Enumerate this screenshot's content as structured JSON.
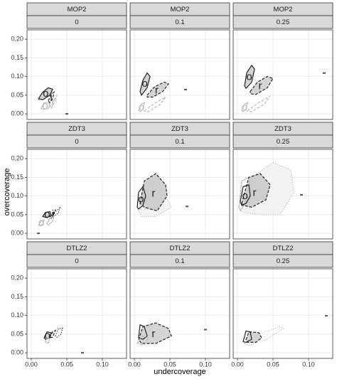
{
  "chart_data": {
    "type": "contour",
    "xlabel": "undercoverage",
    "ylabel": "overcoverage",
    "xlim": [
      -0.006,
      0.134
    ],
    "ylim": [
      -0.015,
      0.225
    ],
    "xticks": [
      {
        "value": 0,
        "label": "0.00"
      },
      {
        "value": 0.05,
        "label": "0.05"
      },
      {
        "value": 0.1,
        "label": "0.10"
      }
    ],
    "yticks": [
      {
        "value": 0,
        "label": "0.00"
      },
      {
        "value": 0.05,
        "label": "0.05"
      },
      {
        "value": 0.1,
        "label": "0.10"
      },
      {
        "value": 0.15,
        "label": "0.15"
      },
      {
        "value": 0.2,
        "label": "0.20"
      }
    ],
    "grid": true,
    "panels": [
      {
        "problem": "MOP2",
        "noise": "0",
        "series": [
          {
            "label": "o",
            "style": "solid",
            "color": "#222222",
            "fill": "#cccccc",
            "x": [
              0.01,
              0.016,
              0.024,
              0.03,
              0.026,
              0.016
            ],
            "y": [
              0.04,
              0.058,
              0.07,
              0.066,
              0.05,
              0.038
            ]
          },
          {
            "label": "i",
            "style": "dashed",
            "color": "#222222",
            "fill": null,
            "x": [
              0.024,
              0.028,
              0.032,
              0.03,
              0.026
            ],
            "y": [
              0.035,
              0.052,
              0.058,
              0.04,
              0.03
            ]
          },
          {
            "label": "r",
            "style": "dashed",
            "color": "#bbbbbb",
            "fill": null,
            "x": [
              0.026,
              0.03,
              0.036,
              0.034,
              0.028
            ],
            "y": [
              0.018,
              0.03,
              0.05,
              0.035,
              0.015
            ]
          },
          {
            "label": "o",
            "style": "solid",
            "color": "#bbbbbb",
            "fill": null,
            "x": [
              0.014,
              0.018,
              0.026,
              0.024,
              0.016
            ],
            "y": [
              0.015,
              0.03,
              0.028,
              0.014,
              0.012
            ]
          },
          {
            "marker": true,
            "color": "#555555",
            "x": [
              0.05
            ],
            "y": [
              0.0
            ]
          }
        ]
      },
      {
        "problem": "MOP2",
        "noise": "0.1",
        "series": [
          {
            "label": "o",
            "style": "solid",
            "color": "#222222",
            "fill": "#cccccc",
            "x": [
              0.008,
              0.012,
              0.018,
              0.022,
              0.018,
              0.01
            ],
            "y": [
              0.06,
              0.09,
              0.11,
              0.1,
              0.07,
              0.05
            ]
          },
          {
            "label": "r",
            "style": "dashed",
            "color": "#222222",
            "fill": "#cccccc",
            "x": [
              0.018,
              0.028,
              0.042,
              0.048,
              0.04,
              0.026,
              0.018
            ],
            "y": [
              0.05,
              0.072,
              0.085,
              0.08,
              0.06,
              0.045,
              0.045
            ]
          },
          {
            "label": "o",
            "style": "solid",
            "color": "#bbbbbb",
            "fill": null,
            "x": [
              0.006,
              0.01,
              0.014,
              0.012,
              0.008
            ],
            "y": [
              0.01,
              0.026,
              0.03,
              0.012,
              0.006
            ]
          },
          {
            "style": "dashed",
            "color": "#bbbbbb",
            "fill": null,
            "x": [
              0.014,
              0.03,
              0.044,
              0.036,
              0.02
            ],
            "y": [
              0.008,
              0.03,
              0.045,
              0.025,
              0.006
            ]
          },
          {
            "marker": true,
            "color": "#555555",
            "x": [
              0.072
            ],
            "y": [
              0.065
            ]
          }
        ]
      },
      {
        "problem": "MOP2",
        "noise": "0.25",
        "series": [
          {
            "label": "o",
            "style": "solid",
            "color": "#222222",
            "fill": "#cccccc",
            "x": [
              0.01,
              0.013,
              0.02,
              0.024,
              0.02,
              0.012
            ],
            "y": [
              0.075,
              0.11,
              0.13,
              0.12,
              0.085,
              0.068
            ]
          },
          {
            "label": "r",
            "style": "dashed",
            "color": "#222222",
            "fill": "#cccccc",
            "x": [
              0.018,
              0.028,
              0.042,
              0.05,
              0.042,
              0.026,
              0.018
            ],
            "y": [
              0.06,
              0.085,
              0.1,
              0.095,
              0.07,
              0.052,
              0.054
            ]
          },
          {
            "label": "o",
            "style": "solid",
            "color": "#bbbbbb",
            "fill": null,
            "x": [
              0.006,
              0.01,
              0.014,
              0.012,
              0.008
            ],
            "y": [
              0.01,
              0.026,
              0.03,
              0.012,
              0.006
            ]
          },
          {
            "style": "dashed",
            "color": "#bbbbbb",
            "fill": null,
            "x": [
              0.014,
              0.03,
              0.046,
              0.038,
              0.02
            ],
            "y": [
              0.008,
              0.03,
              0.048,
              0.026,
              0.006
            ]
          },
          {
            "marker": true,
            "color": "#555555",
            "x": [
              0.122
            ],
            "y": [
              0.109
            ]
          }
        ]
      },
      {
        "problem": "ZDT3",
        "noise": "0",
        "series": [
          {
            "label": "o",
            "style": "solid",
            "color": "#222222",
            "fill": "#cccccc",
            "x": [
              0.016,
              0.02,
              0.026,
              0.028,
              0.022
            ],
            "y": [
              0.045,
              0.056,
              0.058,
              0.048,
              0.042
            ]
          },
          {
            "label": "i",
            "style": "dashed",
            "color": "#222222",
            "fill": null,
            "x": [
              0.026,
              0.03,
              0.034,
              0.032,
              0.028
            ],
            "y": [
              0.044,
              0.05,
              0.064,
              0.052,
              0.04
            ]
          },
          {
            "style": "dotted",
            "color": "#222222",
            "fill": null,
            "x": [
              0.03,
              0.034,
              0.04,
              0.038,
              0.032
            ],
            "y": [
              0.05,
              0.058,
              0.068,
              0.054,
              0.046
            ]
          },
          {
            "label": "o",
            "style": "solid",
            "color": "#bbbbbb",
            "fill": null,
            "x": [
              0.01,
              0.014,
              0.018,
              0.016,
              0.012
            ],
            "y": [
              0.022,
              0.034,
              0.036,
              0.024,
              0.02
            ]
          },
          {
            "style": "solid",
            "color": "#bbbbbb",
            "fill": null,
            "x": [
              0.022,
              0.026,
              0.032,
              0.03,
              0.024
            ],
            "y": [
              0.026,
              0.04,
              0.046,
              0.032,
              0.022
            ]
          },
          {
            "marker": true,
            "color": "#555555",
            "x": [
              0.01
            ],
            "y": [
              0.0
            ]
          }
        ]
      },
      {
        "problem": "ZDT3",
        "noise": "0.1",
        "series": [
          {
            "style": "dotted",
            "color": "#bbbbbb",
            "fill": "#f0f0f0",
            "x": [
              0.006,
              0.012,
              0.03,
              0.044,
              0.052,
              0.03,
              0.01
            ],
            "y": [
              0.06,
              0.13,
              0.14,
              0.1,
              0.07,
              0.045,
              0.045
            ]
          },
          {
            "label": "r",
            "style": "dashed",
            "color": "#222222",
            "fill": "#c8c8c8",
            "x": [
              0.008,
              0.014,
              0.03,
              0.044,
              0.046,
              0.032,
              0.014
            ],
            "y": [
              0.08,
              0.14,
              0.16,
              0.13,
              0.1,
              0.06,
              0.07
            ]
          },
          {
            "label": "o",
            "style": "solid",
            "color": "#222222",
            "fill": null,
            "x": [
              0.004,
              0.006,
              0.012,
              0.016,
              0.012,
              0.006
            ],
            "y": [
              0.07,
              0.11,
              0.125,
              0.1,
              0.075,
              0.065
            ]
          },
          {
            "marker": true,
            "color": "#555555",
            "x": [
              0.074
            ],
            "y": [
              0.072
            ]
          }
        ]
      },
      {
        "problem": "ZDT3",
        "noise": "0.25",
        "series": [
          {
            "style": "dotted",
            "color": "#bbbbbb",
            "fill": "#f0f0f0",
            "x": [
              0.004,
              0.02,
              0.05,
              0.075,
              0.08,
              0.06,
              0.03,
              0.01
            ],
            "y": [
              0.06,
              0.15,
              0.19,
              0.17,
              0.11,
              0.05,
              0.05,
              0.055
            ]
          },
          {
            "style": "solid",
            "color": "#bbbbbb",
            "fill": null,
            "x": [
              0.002,
              0.006,
              0.016,
              0.02,
              0.01,
              0.004
            ],
            "y": [
              0.07,
              0.14,
              0.15,
              0.11,
              0.08,
              0.06
            ]
          },
          {
            "label": "r",
            "style": "dashed",
            "color": "#222222",
            "fill": "#c8c8c8",
            "x": [
              0.006,
              0.016,
              0.032,
              0.046,
              0.04,
              0.02,
              0.008
            ],
            "y": [
              0.08,
              0.15,
              0.16,
              0.13,
              0.09,
              0.07,
              0.075
            ]
          },
          {
            "label": "o",
            "style": "solid",
            "color": "#222222",
            "fill": null,
            "x": [
              0.004,
              0.008,
              0.016,
              0.018,
              0.012,
              0.006
            ],
            "y": [
              0.085,
              0.125,
              0.13,
              0.1,
              0.08,
              0.075
            ]
          },
          {
            "marker": true,
            "color": "#555555",
            "x": [
              0.09
            ],
            "y": [
              0.103
            ]
          }
        ]
      },
      {
        "problem": "DTLZ2",
        "noise": "0",
        "series": [
          {
            "label": "o",
            "style": "solid",
            "color": "#222222",
            "fill": "#cccccc",
            "x": [
              0.018,
              0.022,
              0.028,
              0.026,
              0.02
            ],
            "y": [
              0.04,
              0.056,
              0.054,
              0.04,
              0.036
            ]
          },
          {
            "style": "dashed",
            "color": "#222222",
            "fill": null,
            "x": [
              0.026,
              0.03,
              0.034,
              0.03
            ],
            "y": [
              0.04,
              0.056,
              0.06,
              0.042
            ]
          },
          {
            "style": "dotted",
            "color": "#222222",
            "fill": null,
            "x": [
              0.034,
              0.038,
              0.044,
              0.042,
              0.036
            ],
            "y": [
              0.045,
              0.064,
              0.066,
              0.05,
              0.042
            ]
          },
          {
            "style": "solid",
            "color": "#bbbbbb",
            "fill": null,
            "x": [
              0.02,
              0.022,
              0.026,
              0.024
            ],
            "y": [
              0.028,
              0.04,
              0.038,
              0.026
            ]
          },
          {
            "marker": true,
            "color": "#555555",
            "x": [
              0.072
            ],
            "y": [
              0.0
            ]
          }
        ]
      },
      {
        "problem": "DTLZ2",
        "noise": "0.1",
        "series": [
          {
            "label": "r",
            "style": "dashed",
            "color": "#222222",
            "fill": "#cccccc",
            "x": [
              0.006,
              0.012,
              0.03,
              0.048,
              0.052,
              0.03,
              0.01
            ],
            "y": [
              0.035,
              0.07,
              0.08,
              0.065,
              0.045,
              0.025,
              0.025
            ]
          },
          {
            "style": "solid",
            "color": "#222222",
            "fill": null,
            "x": [
              0.006,
              0.008,
              0.014,
              0.018,
              0.012
            ],
            "y": [
              0.04,
              0.075,
              0.07,
              0.045,
              0.036
            ]
          },
          {
            "style": "dashed",
            "color": "#bbbbbb",
            "fill": null,
            "x": [
              0.004,
              0.01,
              0.02,
              0.014
            ],
            "y": [
              0.025,
              0.045,
              0.04,
              0.02
            ]
          },
          {
            "marker": true,
            "color": "#555555",
            "x": [
              0.1
            ],
            "y": [
              0.062
            ]
          }
        ]
      },
      {
        "problem": "DTLZ2",
        "noise": "0.25",
        "series": [
          {
            "style": "dotted",
            "color": "#bbbbbb",
            "fill": null,
            "x": [
              0.01,
              0.03,
              0.06,
              0.065,
              0.04,
              0.015
            ],
            "y": [
              0.025,
              0.05,
              0.07,
              0.065,
              0.035,
              0.02
            ]
          },
          {
            "style": "dashed",
            "color": "#222222",
            "fill": "#cccccc",
            "x": [
              0.012,
              0.016,
              0.03,
              0.034,
              0.026,
              0.014
            ],
            "y": [
              0.035,
              0.056,
              0.054,
              0.04,
              0.028,
              0.028
            ]
          },
          {
            "style": "solid",
            "color": "#222222",
            "fill": null,
            "x": [
              0.008,
              0.012,
              0.018,
              0.02,
              0.012
            ],
            "y": [
              0.03,
              0.058,
              0.056,
              0.036,
              0.028
            ]
          },
          {
            "marker": true,
            "color": "#555555",
            "x": [
              0.125
            ],
            "y": [
              0.099
            ]
          }
        ]
      }
    ]
  }
}
